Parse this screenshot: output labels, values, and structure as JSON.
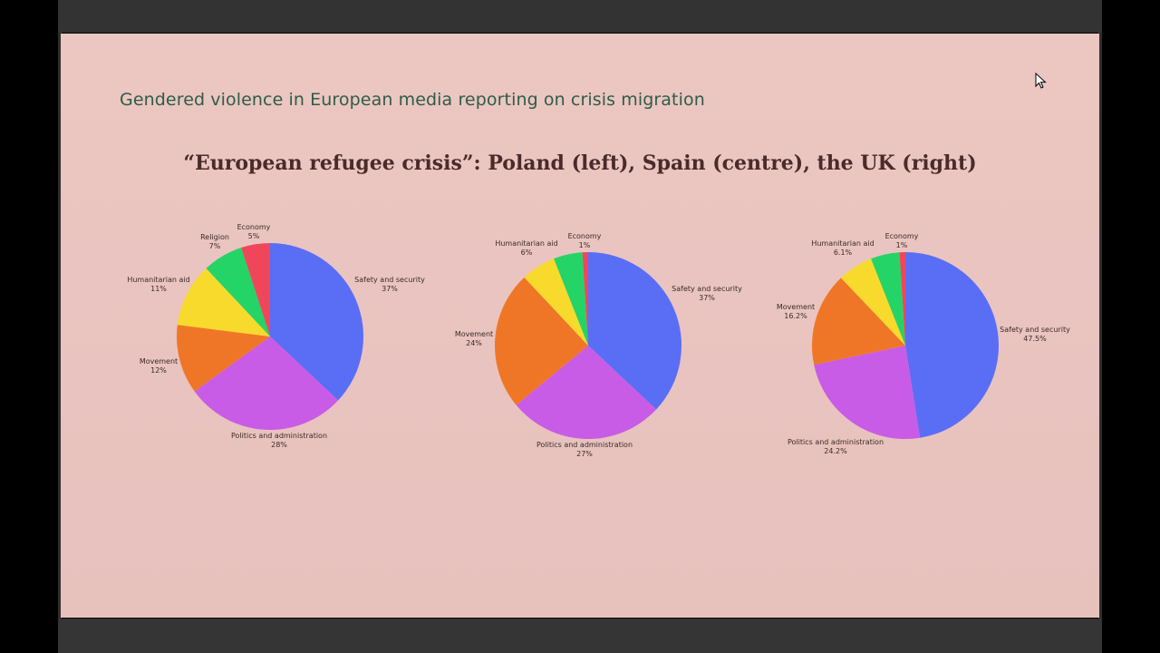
{
  "slide": {
    "subtitle": "Gendered violence in European media reporting on crisis migration",
    "title": "“European refugee crisis”: Poland (left), Spain (centre), the UK (right)"
  },
  "colors": {
    "safety": "#5a6ef5",
    "politics": "#c85ce6",
    "movement": "#f07627",
    "humanitarian": "#f8da2c",
    "religion": "#24d466",
    "economy": "#f0465c"
  },
  "chart_data": [
    {
      "type": "pie",
      "title": "",
      "slices": [
        {
          "label": "Safety and security",
          "value": 37,
          "value_label": "37%",
          "color": "#5a6ef5"
        },
        {
          "label": "Politics and administration",
          "value": 28,
          "value_label": "28%",
          "color": "#c85ce6"
        },
        {
          "label": "Movement",
          "value": 12,
          "value_label": "12%",
          "color": "#f07627"
        },
        {
          "label": "Humanitarian aid",
          "value": 11,
          "value_label": "11%",
          "color": "#f8da2c"
        },
        {
          "label": "Religion",
          "value": 7,
          "value_label": "7%",
          "color": "#24d466"
        },
        {
          "label": "Economy",
          "value": 5,
          "value_label": "5%",
          "color": "#f0465c"
        }
      ]
    },
    {
      "type": "pie",
      "title": "",
      "slices": [
        {
          "label": "Safety and security",
          "value": 37,
          "value_label": "37%",
          "color": "#5a6ef5"
        },
        {
          "label": "Politics and administration",
          "value": 27,
          "value_label": "27%",
          "color": "#c85ce6"
        },
        {
          "label": "Movement",
          "value": 24,
          "value_label": "24%",
          "color": "#f07627"
        },
        {
          "label": "Humanitarian aid",
          "value": 6,
          "value_label": "6%",
          "color": "#f8da2c"
        },
        {
          "label": "",
          "value": 5,
          "value_label": "",
          "color": "#24d466"
        },
        {
          "label": "Economy",
          "value": 1,
          "value_label": "1%",
          "color": "#f0465c"
        }
      ]
    },
    {
      "type": "pie",
      "title": "",
      "slices": [
        {
          "label": "Safety and security",
          "value": 47.5,
          "value_label": "47.5%",
          "color": "#5a6ef5"
        },
        {
          "label": "Politics and administration",
          "value": 24.2,
          "value_label": "24.2%",
          "color": "#c85ce6"
        },
        {
          "label": "Movement",
          "value": 16.2,
          "value_label": "16.2%",
          "color": "#f07627"
        },
        {
          "label": "Humanitarian aid",
          "value": 6.1,
          "value_label": "6.1%",
          "color": "#f8da2c"
        },
        {
          "label": "",
          "value": 5,
          "value_label": "",
          "color": "#24d466"
        },
        {
          "label": "Economy",
          "value": 1,
          "value_label": "1%",
          "color": "#f0465c"
        }
      ]
    }
  ]
}
